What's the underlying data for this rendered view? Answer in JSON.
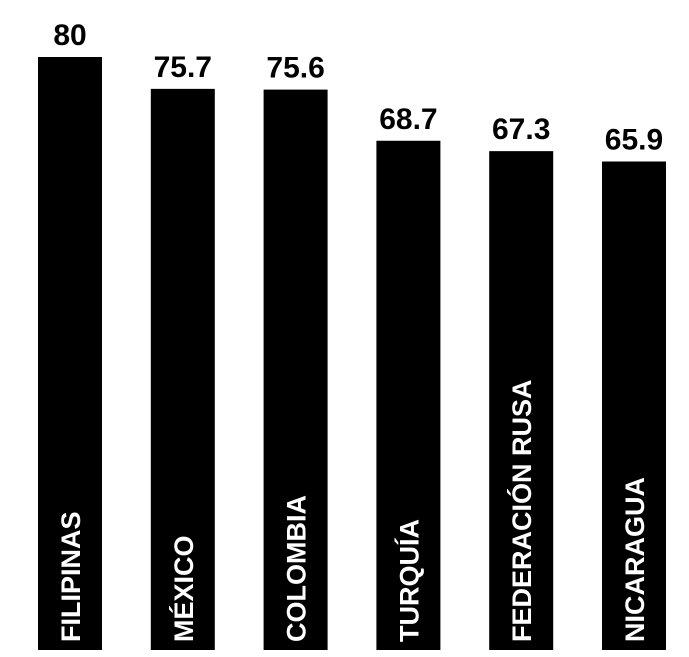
{
  "chart_data": {
    "type": "bar",
    "categories": [
      "FILIPINAS",
      "MÉXICO",
      "COLOMBIA",
      "TURQUÍA",
      "FEDERACIÓN RUSA",
      "NICARAGUA"
    ],
    "values": [
      80,
      75.7,
      75.6,
      68.7,
      67.3,
      65.9
    ],
    "value_labels": [
      "80",
      "75.7",
      "75.6",
      "68.7",
      "67.3",
      "65.9"
    ],
    "title": "",
    "xlabel": "",
    "ylabel": "",
    "ylim": [
      0,
      80
    ],
    "grid": false,
    "legend": "none",
    "bar_color": "#000000",
    "label_color": "#ffffff"
  }
}
